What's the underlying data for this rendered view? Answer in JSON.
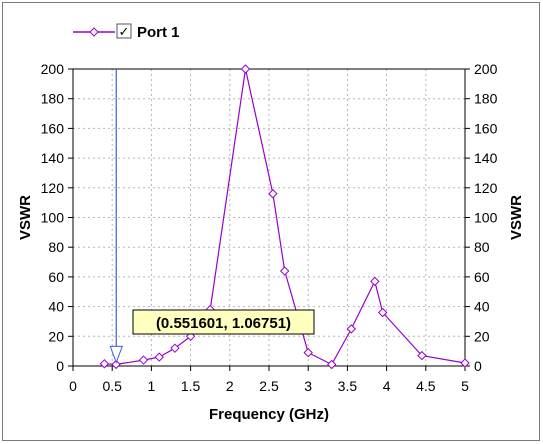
{
  "chart_data": {
    "type": "line",
    "xlabel": "Frequency (GHz)",
    "ylabel": "VSWR",
    "ylabel_right": "VSWR",
    "xlim": [
      0,
      5
    ],
    "ylim": [
      0,
      200
    ],
    "x_ticks": [
      "0",
      "0.5",
      "1",
      "1.5",
      "2",
      "2.5",
      "3",
      "3.5",
      "4",
      "4.5",
      "5"
    ],
    "y_ticks": [
      "0",
      "20",
      "40",
      "60",
      "80",
      "100",
      "120",
      "140",
      "160",
      "180",
      "200"
    ],
    "grid": true,
    "legend": {
      "position": "top-left",
      "checked": true,
      "checkbox_mark": "✓"
    },
    "series": [
      {
        "name": "Port 1",
        "color": "#9900cc",
        "x": [
          0.4,
          0.55,
          0.9,
          1.1,
          1.3,
          1.5,
          1.75,
          2.2,
          2.55,
          2.7,
          3.0,
          3.3,
          3.55,
          3.85,
          3.95,
          4.45,
          5.0
        ],
        "y": [
          1.5,
          1.07,
          4,
          6,
          12,
          20,
          38,
          200,
          116,
          64,
          9,
          1,
          25,
          57,
          36,
          7,
          2
        ]
      }
    ],
    "marker": {
      "label": "(0.551601, 1.06751)",
      "x": 0.551601,
      "y": 1.06751,
      "color": "#3a5fd6"
    }
  }
}
